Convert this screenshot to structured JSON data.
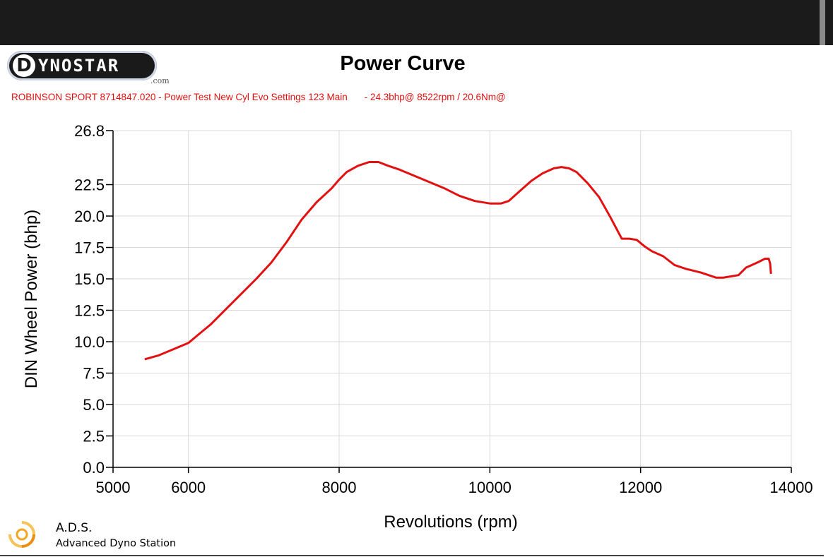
{
  "header": {
    "logo_text": "YNOSTAR",
    "logo_letter": "D",
    "logo_suffix": ".com",
    "title": "Power Curve",
    "subtitle_left": "ROBINSON SPORT 8714847.020 - Power Test New Cyl Evo Settings 123 Main",
    "subtitle_right": "- 24.3bhp@ 8522rpm / 20.6Nm@"
  },
  "footer": {
    "ads_name": "A.D.S.",
    "ads_sub": "Advanced Dyno Station"
  },
  "colors": {
    "curve": "#e31010",
    "grid": "#d9d9d9",
    "subtitle": "#e01010"
  },
  "chart_data": {
    "type": "line",
    "title": "Power Curve",
    "xlabel": "Revolutions (rpm)",
    "ylabel": "DIN Wheel Power (bhp)",
    "xlim": [
      5000,
      14000
    ],
    "ylim": [
      0,
      26.8
    ],
    "x_ticks": [
      5000,
      6000,
      8000,
      10000,
      12000,
      14000
    ],
    "x_tick_labels": [
      "5000",
      "6000",
      "8000",
      "10000",
      "12000",
      "14000"
    ],
    "y_ticks": [
      0,
      2.5,
      5,
      7.5,
      10,
      12.5,
      15,
      17.5,
      20,
      22.5,
      26.8
    ],
    "y_tick_labels": [
      "0.0",
      "2.5",
      "5.0",
      "7.5",
      "10.0",
      "12.5",
      "15.0",
      "17.5",
      "20.0",
      "22.5",
      "26.8"
    ],
    "grid": true,
    "series": [
      {
        "x": [
          5420,
          5600,
          5800,
          6000,
          6100,
          6300,
          6500,
          6700,
          6900,
          7100,
          7300,
          7500,
          7700,
          7900,
          8000,
          8100,
          8250,
          8400,
          8522,
          8650,
          8800,
          9000,
          9200,
          9400,
          9600,
          9800,
          10000,
          10150,
          10250,
          10400,
          10550,
          10700,
          10850,
          10950,
          11050,
          11150,
          11300,
          11450,
          11600,
          11750,
          11850,
          11950,
          12050,
          12150,
          12300,
          12450,
          12600,
          12800,
          13000,
          13100,
          13200,
          13300,
          13400,
          13550,
          13650,
          13700,
          13720,
          13730
        ],
        "y": [
          8.6,
          8.9,
          9.4,
          9.9,
          10.4,
          11.4,
          12.6,
          13.8,
          15.0,
          16.3,
          17.9,
          19.7,
          21.1,
          22.2,
          22.9,
          23.5,
          24.0,
          24.3,
          24.3,
          24.0,
          23.7,
          23.2,
          22.7,
          22.2,
          21.6,
          21.2,
          21.0,
          21.0,
          21.2,
          22.0,
          22.8,
          23.4,
          23.8,
          23.9,
          23.8,
          23.5,
          22.6,
          21.5,
          19.9,
          18.2,
          18.2,
          18.1,
          17.6,
          17.2,
          16.8,
          16.1,
          15.8,
          15.5,
          15.1,
          15.1,
          15.2,
          15.3,
          15.9,
          16.3,
          16.6,
          16.6,
          16.2,
          15.4
        ]
      }
    ]
  }
}
